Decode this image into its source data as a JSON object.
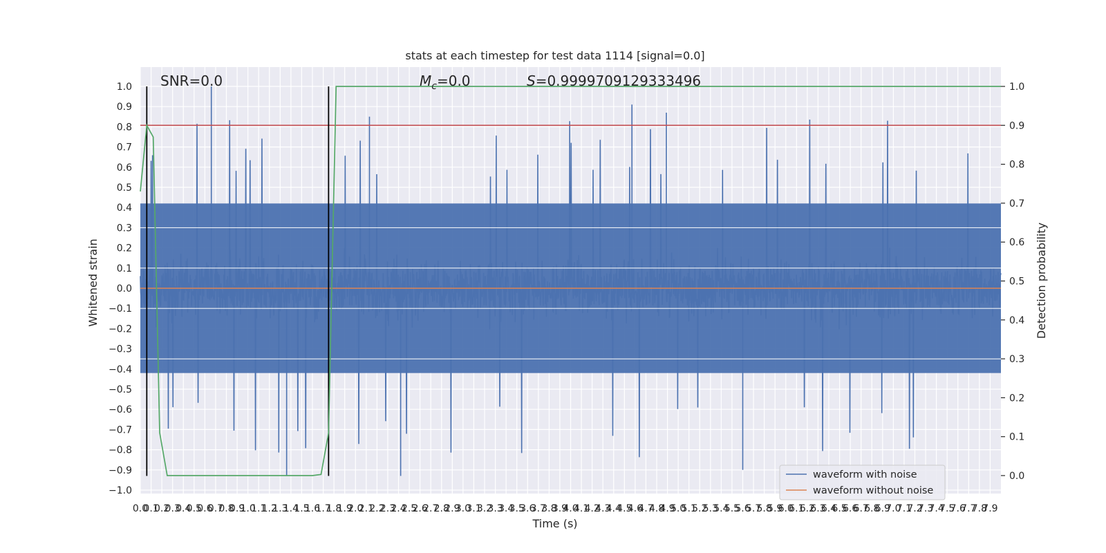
{
  "chart_data": {
    "type": "line",
    "title": "stats at each timestep for test data 1114 [signal=0.0]",
    "xlabel": "Time (s)",
    "ylabel": "Whitened strain",
    "y2label": "Detection probability",
    "xlim": [
      0.0,
      8.0
    ],
    "ylim": [
      -1.0,
      1.0
    ],
    "y2lim": [
      0.0,
      1.0
    ],
    "xticks": [
      "0.0",
      "0.1",
      "0.2",
      "0.3",
      "0.4",
      "0.5",
      "0.6",
      "0.7",
      "0.8",
      "0.9",
      "1.0",
      "1.1",
      "1.2",
      "1.3",
      "1.4",
      "1.5",
      "1.6",
      "1.7",
      "1.8",
      "1.9",
      "2.0",
      "2.1",
      "2.2",
      "2.3",
      "2.4",
      "2.5",
      "2.6",
      "2.7",
      "2.8",
      "2.9",
      "3.0",
      "3.1",
      "3.2",
      "3.3",
      "3.4",
      "3.5",
      "3.6",
      "3.7",
      "3.8",
      "3.9",
      "4.0",
      "4.1",
      "4.2",
      "4.3",
      "4.4",
      "4.5",
      "4.6",
      "4.7",
      "4.8",
      "4.9",
      "5.0",
      "5.1",
      "5.2",
      "5.3",
      "5.4",
      "5.5",
      "5.6",
      "5.7",
      "5.8",
      "5.9",
      "6.0",
      "6.1",
      "6.2",
      "6.3",
      "6.4",
      "6.5",
      "6.6",
      "6.7",
      "6.8",
      "6.9",
      "7.0",
      "7.1",
      "7.2",
      "7.3",
      "7.4",
      "7.5",
      "7.6",
      "7.7",
      "7.8",
      "7.9"
    ],
    "yticks": [
      "1.0",
      "0.9",
      "0.8",
      "0.7",
      "0.6",
      "0.5",
      "0.4",
      "0.3",
      "0.2",
      "0.1",
      "0.0",
      "−0.1",
      "−0.2",
      "−0.3",
      "−0.4",
      "−0.5",
      "−0.6",
      "−0.7",
      "−0.8",
      "−0.9",
      "−1.0"
    ],
    "y2ticks": [
      "1.0",
      "0.9",
      "0.8",
      "0.7",
      "0.6",
      "0.5",
      "0.4",
      "0.3",
      "0.2",
      "0.1",
      "0.0"
    ],
    "annotations": {
      "snr": "SNR=0.0",
      "mc_symbol": "M",
      "mc_sub": "c",
      "mc_value": "=0.0",
      "s_symbol": "S",
      "s_value": "=0.9999709129333496"
    },
    "series": [
      {
        "name": "waveform with noise",
        "color": "#4c72b0",
        "envelope": {
          "upper_typical": 0.42,
          "lower_typical": -0.42,
          "max": 1.0,
          "min": -0.93
        }
      },
      {
        "name": "waveform without noise",
        "color": "#dd8452",
        "constant": 0.0
      }
    ],
    "detection_probability": {
      "color": "#55a868",
      "x": [
        0.0,
        0.06,
        0.12,
        0.18,
        0.25,
        1.6,
        1.68,
        1.75,
        1.82,
        8.0
      ],
      "y": [
        0.73,
        0.9,
        0.87,
        0.11,
        0.0,
        0.0,
        0.003,
        0.11,
        1.0,
        1.0
      ]
    },
    "threshold": {
      "color": "#c44e52",
      "y2": 0.9
    },
    "vertical_lines": {
      "color": "#000000",
      "x": [
        0.06,
        1.75
      ],
      "ymin": -0.93,
      "ymax": 1.0
    },
    "legend_placement": "lower-right",
    "grid": true
  }
}
